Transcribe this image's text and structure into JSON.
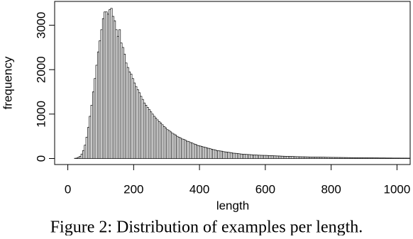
{
  "chart_data": {
    "type": "histogram",
    "xlabel": "length",
    "ylabel": "frequency",
    "caption": "Figure 2: Distribution of examples per length.",
    "bins": [
      20,
      25,
      30,
      35,
      40,
      45,
      50,
      55,
      60,
      65,
      70,
      75,
      80,
      85,
      90,
      95,
      100,
      105,
      110,
      115,
      120,
      125,
      130,
      135,
      140,
      145,
      150,
      155,
      160,
      165,
      170,
      175,
      180,
      185,
      190,
      195,
      200,
      205,
      210,
      215,
      220,
      225,
      230,
      235,
      240,
      245,
      250,
      255,
      260,
      265,
      270,
      275,
      280,
      285,
      290,
      295,
      300,
      305,
      310,
      315,
      320,
      325,
      330,
      335,
      340,
      345,
      350,
      355,
      360,
      365,
      370,
      375,
      380,
      385,
      390,
      395,
      400,
      405,
      410,
      415,
      420,
      425,
      430,
      435,
      440,
      445,
      450,
      455,
      460,
      465,
      470,
      475,
      480,
      485,
      490,
      495,
      500,
      505,
      510,
      515,
      520,
      525,
      530,
      535,
      540,
      545,
      550,
      555,
      560,
      565,
      570,
      575,
      580,
      585,
      590,
      595,
      600,
      605,
      610,
      615,
      620,
      625,
      630,
      635,
      640,
      645,
      650,
      655,
      660,
      665,
      670,
      675,
      680,
      685,
      690,
      695,
      700,
      705,
      710,
      715,
      720,
      725,
      730,
      735,
      740,
      745,
      750,
      755,
      760,
      765,
      770,
      775,
      780,
      785,
      790,
      795,
      800,
      805,
      810,
      815,
      820,
      825,
      830,
      835,
      840,
      845,
      850,
      855,
      860,
      865,
      870,
      875,
      880,
      885,
      890,
      895,
      900,
      905,
      910,
      915,
      920,
      925,
      930,
      935,
      940,
      945,
      950,
      955,
      960,
      965,
      970,
      975,
      980,
      985,
      990,
      995,
      1000,
      1005,
      1010,
      1015,
      1020,
      1025,
      1030,
      1035,
      1040
    ],
    "values": [
      5,
      10,
      25,
      50,
      100,
      180,
      300,
      480,
      700,
      950,
      1200,
      1500,
      1800,
      2100,
      2400,
      2650,
      2900,
      3150,
      3300,
      3300,
      3250,
      3350,
      3380,
      3200,
      3100,
      2900,
      2750,
      2900,
      2600,
      2500,
      2350,
      2150,
      2050,
      1950,
      1900,
      1800,
      1700,
      1620,
      1550,
      1480,
      1400,
      1330,
      1250,
      1200,
      1150,
      1100,
      1050,
      1000,
      950,
      910,
      870,
      830,
      800,
      760,
      720,
      690,
      650,
      630,
      600,
      570,
      550,
      530,
      500,
      480,
      460,
      440,
      430,
      410,
      390,
      380,
      360,
      350,
      330,
      320,
      300,
      290,
      280,
      270,
      260,
      250,
      240,
      230,
      220,
      210,
      200,
      195,
      180,
      175,
      170,
      165,
      155,
      150,
      145,
      140,
      135,
      130,
      120,
      118,
      115,
      110,
      105,
      100,
      98,
      95,
      92,
      90,
      88,
      85,
      82,
      80,
      78,
      75,
      74,
      72,
      71,
      70,
      70,
      68,
      66,
      64,
      62,
      60,
      59,
      57,
      56,
      54,
      52,
      51,
      50,
      48,
      47,
      46,
      45,
      44,
      42,
      41,
      40,
      39,
      38,
      38,
      37,
      36,
      35,
      34,
      34,
      33,
      32,
      31,
      31,
      30,
      29,
      29,
      28,
      27,
      27,
      26,
      25,
      25,
      24,
      24,
      23,
      23,
      22,
      22,
      21,
      21,
      20,
      20,
      19,
      19,
      18,
      18,
      17,
      17,
      16,
      16,
      15,
      15,
      15,
      14,
      14,
      14,
      13,
      13,
      13,
      12,
      12,
      12,
      12,
      11,
      11,
      11,
      11,
      10,
      10,
      10,
      10,
      10,
      9,
      9,
      9,
      9,
      8,
      8
    ],
    "color": "#ffffff",
    "edgecolor": "#000000",
    "xlim": [
      -40,
      1040
    ],
    "xticks": [
      0,
      200,
      400,
      600,
      800,
      1000
    ],
    "ylim": [
      -136,
      3536
    ],
    "yticks": [
      0,
      1000,
      2000,
      3000
    ]
  }
}
